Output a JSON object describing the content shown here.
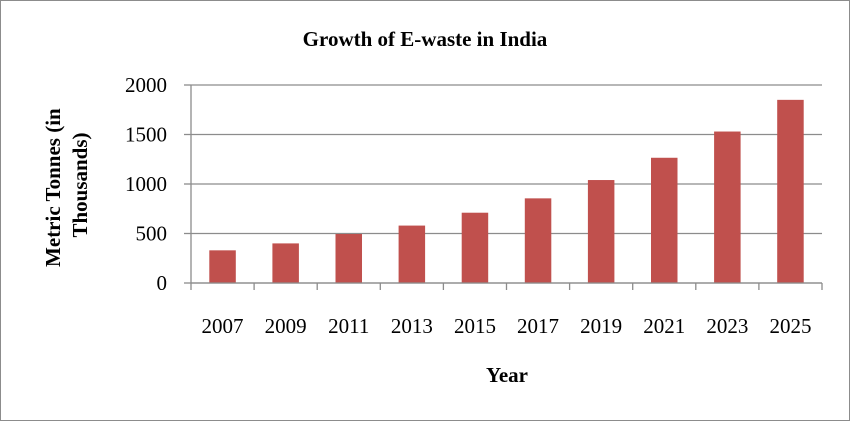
{
  "chart_data": {
    "type": "bar",
    "title": "Growth of E-waste in India",
    "xlabel": "Year",
    "ylabel_lines": [
      "Metric Tonnes (in",
      "Thousands)"
    ],
    "categories": [
      "2007",
      "2009",
      "2011",
      "2013",
      "2015",
      "2017",
      "2019",
      "2021",
      "2023",
      "2025"
    ],
    "values": [
      330,
      400,
      495,
      580,
      710,
      855,
      1040,
      1265,
      1530,
      1850
    ],
    "ylim": [
      0,
      2000
    ],
    "yticks": [
      "0",
      "500",
      "1000",
      "1500",
      "2000"
    ],
    "grid": true,
    "legend": "none",
    "bar_color": "#c0504d",
    "grid_color": "#8c8c8c"
  }
}
